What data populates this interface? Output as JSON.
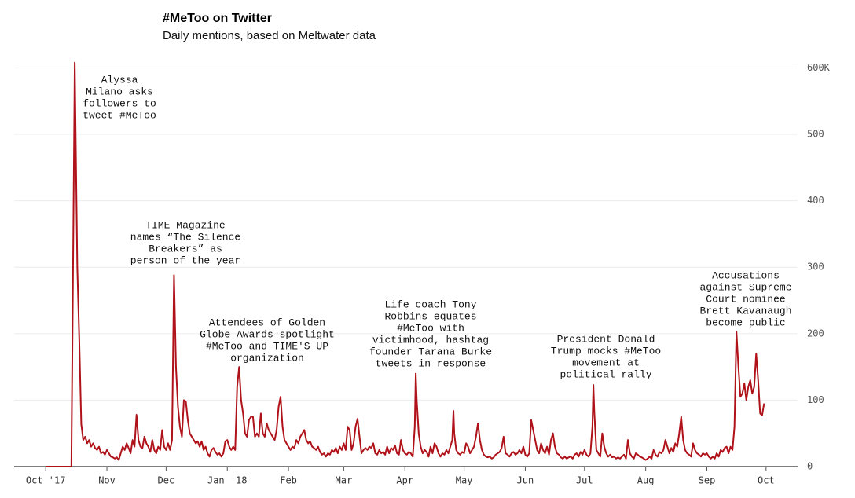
{
  "chart_data": {
    "type": "line",
    "title": "#MeToo on Twitter",
    "subtitle": "Daily mentions, based on Meltwater data",
    "color": "#b0121a",
    "grid": true,
    "xlim": [
      -16,
      379
    ],
    "ylim": [
      0,
      610
    ],
    "xticks": [
      {
        "value": 0,
        "label": "Oct '17"
      },
      {
        "value": 31,
        "label": "Nov"
      },
      {
        "value": 61,
        "label": "Dec"
      },
      {
        "value": 92,
        "label": "Jan '18"
      },
      {
        "value": 123,
        "label": "Feb"
      },
      {
        "value": 151,
        "label": "Mar"
      },
      {
        "value": 182,
        "label": "Apr"
      },
      {
        "value": 212,
        "label": "May"
      },
      {
        "value": 243,
        "label": "Jun"
      },
      {
        "value": 273,
        "label": "Jul"
      },
      {
        "value": 304,
        "label": "Aug"
      },
      {
        "value": 335,
        "label": "Sep"
      },
      {
        "value": 365,
        "label": "Oct"
      }
    ],
    "yticks": [
      0,
      100,
      200,
      300,
      400,
      500,
      {
        "value": 600,
        "label": "600K"
      }
    ],
    "annotations": [
      [
        "Alyssa",
        "Milano asks",
        "followers to",
        "tweet #MeToo"
      ],
      [
        "TIME Magazine",
        "names “The Silence",
        "Breakers” as",
        "person of the year"
      ],
      [
        "Attendees of Golden",
        "Globe Awards spotlight",
        "#MeToo and TIME'S UP",
        "organization"
      ],
      [
        "Life coach Tony",
        "Robbins equates",
        "#MeToo with",
        "victimhood, hashtag",
        "founder Tarana Burke",
        "tweets in response"
      ],
      [
        "President Donald",
        "Trump mocks #MeToo",
        "movement at",
        "political rally"
      ],
      [
        "Accusations",
        "against Supreme",
        "Court nominee",
        "Brett Kavanaugh",
        "become public"
      ]
    ],
    "x": [
      0,
      13,
      14.7,
      16,
      17,
      18,
      19,
      20,
      21,
      22,
      23,
      24,
      25,
      26,
      27,
      28,
      29,
      30,
      31,
      32,
      33,
      34,
      35,
      36,
      37,
      38,
      39,
      40,
      41,
      42,
      43,
      44,
      45,
      46,
      47,
      48,
      49,
      50,
      51,
      52,
      53,
      54,
      55,
      56,
      57,
      58,
      59,
      60,
      61,
      62,
      63,
      64,
      65,
      66,
      67,
      68,
      69,
      70,
      71,
      72,
      73,
      74,
      75,
      76,
      77,
      78,
      79,
      80,
      81,
      82,
      83,
      84,
      85,
      86,
      87,
      88,
      89,
      90,
      91,
      92,
      93,
      94,
      95,
      96,
      97,
      98,
      99,
      100,
      101,
      102,
      103,
      104,
      105,
      106,
      107,
      108,
      109,
      110,
      111,
      112,
      113,
      114,
      115,
      116,
      117,
      118,
      119,
      120,
      121,
      122,
      123,
      124,
      125,
      126,
      127,
      128,
      129,
      130,
      131,
      132,
      133,
      134,
      135,
      136,
      137,
      138,
      139,
      140,
      141,
      142,
      143,
      144,
      145,
      146,
      147,
      148,
      149,
      150,
      151,
      152,
      153,
      154,
      155,
      156,
      157,
      158,
      159,
      160,
      161,
      162,
      163,
      164,
      165,
      166,
      167,
      168,
      169,
      170,
      171,
      172,
      173,
      174,
      175,
      176,
      177,
      178,
      179,
      180,
      181,
      182,
      183,
      184,
      185,
      186,
      187,
      187.5,
      188,
      189,
      190,
      191,
      192,
      193,
      194,
      195,
      196,
      197,
      198,
      199,
      200,
      201,
      202,
      203,
      204,
      205,
      206,
      206.6,
      207,
      208,
      209,
      210,
      211,
      212,
      213,
      214,
      215,
      216,
      217,
      218,
      219,
      220,
      221,
      222,
      223,
      224,
      225,
      226,
      227,
      228,
      229,
      230,
      231,
      232,
      233,
      234,
      235,
      236,
      237,
      238,
      239,
      240,
      241,
      242,
      243,
      244,
      245,
      246,
      247,
      248,
      249,
      250,
      251,
      252,
      253,
      254,
      255,
      256,
      257,
      258,
      259,
      260,
      261,
      262,
      263,
      264,
      265,
      266,
      267,
      268,
      269,
      270,
      271,
      272,
      273,
      274,
      275,
      276,
      277,
      277.5,
      278,
      279,
      280,
      281,
      282,
      283,
      284,
      285,
      286,
      287,
      288,
      289,
      290,
      291,
      292,
      293,
      294,
      295,
      296,
      297,
      298,
      299,
      300,
      301,
      302,
      303,
      304,
      305,
      306,
      307,
      308,
      309,
      310,
      311,
      312,
      313,
      314,
      315,
      316,
      317,
      318,
      319,
      320,
      321,
      322,
      323,
      324,
      325,
      326,
      327,
      328,
      329,
      330,
      331,
      332,
      333,
      334,
      335,
      336,
      337,
      338,
      339,
      340,
      341,
      342,
      343,
      344,
      345,
      346,
      347,
      348,
      349,
      350,
      351,
      352,
      353,
      354,
      355,
      356,
      357,
      358,
      359,
      360,
      361,
      362,
      363,
      364
    ],
    "values": [
      0,
      0,
      608,
      300,
      190,
      64,
      40,
      45,
      35,
      40,
      30,
      35,
      28,
      25,
      30,
      20,
      22,
      18,
      25,
      20,
      15,
      14,
      12,
      14,
      10,
      20,
      30,
      25,
      35,
      28,
      20,
      40,
      30,
      78,
      40,
      30,
      28,
      45,
      35,
      30,
      22,
      40,
      25,
      20,
      30,
      25,
      55,
      30,
      25,
      35,
      25,
      40,
      288,
      150,
      90,
      60,
      45,
      100,
      98,
      70,
      50,
      45,
      40,
      35,
      38,
      30,
      38,
      25,
      30,
      20,
      15,
      25,
      28,
      22,
      18,
      20,
      15,
      20,
      38,
      40,
      30,
      25,
      30,
      25,
      120,
      150,
      100,
      80,
      50,
      45,
      70,
      75,
      75,
      45,
      50,
      45,
      80,
      50,
      45,
      65,
      55,
      50,
      45,
      40,
      55,
      90,
      105,
      60,
      40,
      35,
      30,
      25,
      30,
      28,
      40,
      35,
      45,
      50,
      55,
      40,
      35,
      38,
      30,
      28,
      25,
      30,
      22,
      18,
      20,
      15,
      20,
      18,
      25,
      22,
      28,
      20,
      30,
      25,
      35,
      25,
      60,
      55,
      25,
      35,
      60,
      72,
      45,
      20,
      25,
      28,
      25,
      30,
      28,
      35,
      20,
      18,
      25,
      20,
      22,
      18,
      30,
      20,
      28,
      25,
      32,
      20,
      18,
      40,
      25,
      20,
      18,
      22,
      20,
      15,
      60,
      140,
      100,
      50,
      30,
      20,
      25,
      22,
      15,
      30,
      20,
      35,
      30,
      20,
      15,
      20,
      18,
      25,
      20,
      30,
      40,
      84,
      50,
      25,
      20,
      18,
      22,
      20,
      35,
      30,
      20,
      25,
      30,
      45,
      65,
      40,
      25,
      18,
      15,
      14,
      15,
      12,
      14,
      18,
      20,
      22,
      28,
      45,
      20,
      18,
      15,
      20,
      22,
      18,
      20,
      25,
      20,
      30,
      18,
      15,
      20,
      70,
      55,
      40,
      25,
      20,
      35,
      25,
      20,
      30,
      18,
      40,
      50,
      30,
      20,
      18,
      14,
      12,
      15,
      12,
      14,
      15,
      12,
      18,
      20,
      15,
      22,
      18,
      25,
      18,
      15,
      20,
      60,
      123,
      80,
      25,
      20,
      15,
      50,
      30,
      20,
      15,
      18,
      14,
      15,
      12,
      14,
      12,
      15,
      18,
      12,
      40,
      20,
      15,
      12,
      20,
      18,
      15,
      14,
      12,
      10,
      12,
      15,
      12,
      25,
      18,
      15,
      22,
      20,
      25,
      40,
      30,
      20,
      28,
      22,
      35,
      30,
      50,
      75,
      40,
      25,
      20,
      18,
      15,
      35,
      25,
      20,
      18,
      15,
      20,
      18,
      20,
      15,
      12,
      15,
      12,
      20,
      15,
      25,
      22,
      28,
      30,
      20,
      30,
      25,
      60,
      203,
      150,
      105,
      110,
      125,
      100,
      120,
      130,
      110,
      120,
      170,
      130,
      80,
      77,
      95
    ]
  }
}
